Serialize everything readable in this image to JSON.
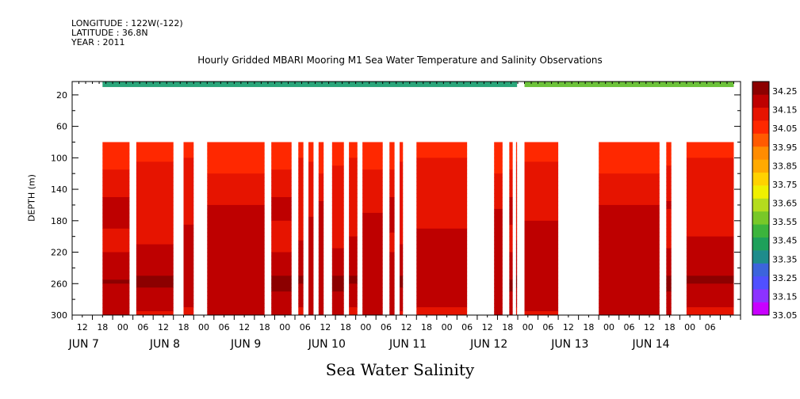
{
  "header": {
    "longitude": "LONGITUDE : 122W(-122)",
    "latitude": "LATITUDE : 36.8N",
    "year": "YEAR : 2011",
    "title": "Hourly Gridded MBARI Mooring M1 Sea Water Temperature and Salinity Observations"
  },
  "footer_title": "Sea Water Salinity",
  "chart_data": {
    "type": "heatmap",
    "title": "Hourly Gridded MBARI Mooring M1 Sea Water Temperature and Salinity Observations",
    "xlabel": "",
    "ylabel": "DEPTH (m)",
    "x_range_hours": [
      0,
      198
    ],
    "y_range": [
      300,
      3
    ],
    "y_inverted": true,
    "y_ticks": [
      20,
      60,
      100,
      140,
      180,
      220,
      260,
      300
    ],
    "x_hour_ticks": [
      "12",
      "18",
      "00",
      "06",
      "12",
      "18",
      "00",
      "06",
      "12",
      "18",
      "00",
      "06",
      "12",
      "18",
      "00",
      "06",
      "12",
      "18",
      "00",
      "06",
      "12",
      "18",
      "00",
      "06",
      "12",
      "18",
      "00",
      "06",
      "12",
      "18",
      "00",
      "06"
    ],
    "x_day_labels": [
      "JUN  7",
      "JUN  8",
      "JUN  9",
      "JUN 10",
      "JUN 11",
      "JUN 12",
      "JUN 13",
      "JUN 14"
    ],
    "x_day_centers_hours": [
      3,
      27,
      51,
      75,
      99,
      123,
      147,
      171
    ],
    "data_segments_hours": [
      [
        9,
        17
      ],
      [
        19,
        30
      ],
      [
        33,
        36
      ],
      [
        40,
        57
      ],
      [
        59,
        65
      ],
      [
        67,
        68.5
      ],
      [
        70,
        71.5
      ],
      [
        73,
        74.5
      ],
      [
        77,
        80.5
      ],
      [
        82,
        84.5
      ],
      [
        86,
        92
      ],
      [
        94,
        95.5
      ],
      [
        97,
        98
      ],
      [
        102,
        117
      ],
      [
        125,
        127.5
      ],
      [
        129.5,
        130.5
      ],
      [
        131.5,
        131.8
      ],
      [
        134,
        144
      ],
      [
        156,
        174
      ],
      [
        176,
        177.5
      ],
      [
        182,
        196
      ]
    ],
    "surface_segments_hours": [
      [
        9,
        131.8
      ],
      [
        134,
        196
      ]
    ],
    "surface_depth": [
      3,
      10
    ],
    "profile_depth_top": 80,
    "depth_profile": {
      "depth": [
        80,
        90,
        100,
        110,
        125,
        140,
        160,
        180,
        200,
        220,
        240,
        255,
        270,
        285,
        300
      ],
      "salinity": [
        33.97,
        33.99,
        34.03,
        34.05,
        34.08,
        34.12,
        34.14,
        34.15,
        34.15,
        34.17,
        34.21,
        34.25,
        34.23,
        34.18,
        34.15
      ]
    },
    "colorbar": {
      "levels": [
        33.05,
        33.15,
        33.25,
        33.35,
        33.45,
        33.55,
        33.65,
        33.75,
        33.85,
        33.95,
        34.05,
        34.15,
        34.25
      ],
      "colors": [
        "#c800ff",
        "#8c32ff",
        "#5050ff",
        "#3c64dc",
        "#1e8c8c",
        "#1ea05a",
        "#3cb43c",
        "#78c828",
        "#b4dc1e",
        "#f0f000",
        "#ffd200",
        "#ffaa00",
        "#ff8c00",
        "#ff5a00",
        "#ff2800",
        "#e61400",
        "#be0000",
        "#8c0000"
      ],
      "tick_labels": [
        "34.25",
        "34.15",
        "34.05",
        "33.95",
        "33.85",
        "33.75",
        "33.65",
        "33.55",
        "33.45",
        "33.35",
        "33.25",
        "33.15",
        "33.05"
      ]
    }
  }
}
